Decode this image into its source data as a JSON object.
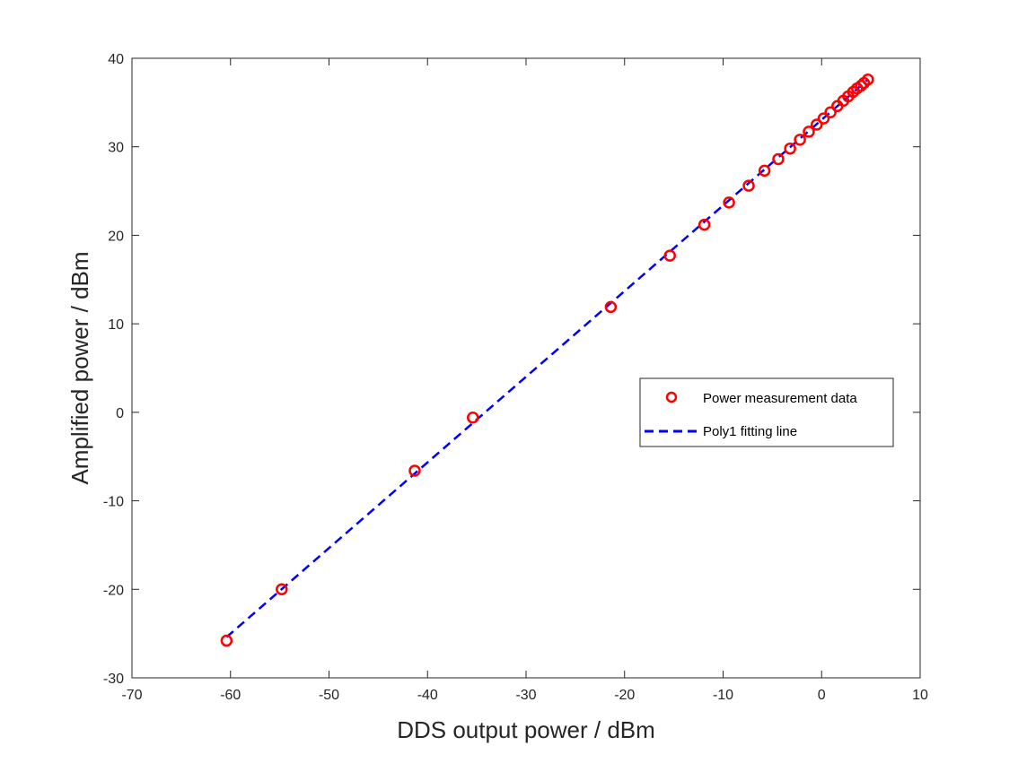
{
  "chart_data": {
    "type": "scatter",
    "title": "",
    "xlabel": "DDS output power / dBm",
    "ylabel": "Amplified power / dBm",
    "xlim": [
      -70,
      10
    ],
    "ylim": [
      -30,
      40
    ],
    "xticks": [
      -70,
      -60,
      -50,
      -40,
      -30,
      -20,
      -10,
      0,
      10
    ],
    "yticks": [
      -30,
      -20,
      -10,
      0,
      10,
      20,
      30,
      40
    ],
    "grid": false,
    "legend_position": "right",
    "series": [
      {
        "name": "Power measurement data",
        "kind": "scatter",
        "marker": "circle",
        "color": "#ff0000",
        "points": [
          [
            -60.4,
            -25.8
          ],
          [
            -54.8,
            -20.0
          ],
          [
            -41.3,
            -6.6
          ],
          [
            -35.4,
            -0.6
          ],
          [
            -21.4,
            11.9
          ],
          [
            -15.4,
            17.7
          ],
          [
            -11.9,
            21.2
          ],
          [
            -9.4,
            23.7
          ],
          [
            -7.4,
            25.6
          ],
          [
            -5.8,
            27.3
          ],
          [
            -4.4,
            28.6
          ],
          [
            -3.2,
            29.8
          ],
          [
            -2.2,
            30.8
          ],
          [
            -1.3,
            31.7
          ],
          [
            -0.5,
            32.5
          ],
          [
            0.2,
            33.2
          ],
          [
            0.9,
            33.9
          ],
          [
            1.6,
            34.6
          ],
          [
            2.2,
            35.2
          ],
          [
            2.7,
            35.7
          ],
          [
            3.2,
            36.2
          ],
          [
            3.6,
            36.6
          ],
          [
            4.0,
            36.9
          ],
          [
            4.3,
            37.2
          ],
          [
            4.7,
            37.6
          ]
        ]
      },
      {
        "name": "Poly1 fitting line",
        "kind": "line",
        "style": "dashed",
        "color": "#0000ff",
        "points": [
          [
            -60.4,
            -25.4
          ],
          [
            4.7,
            37.6
          ]
        ]
      }
    ]
  }
}
